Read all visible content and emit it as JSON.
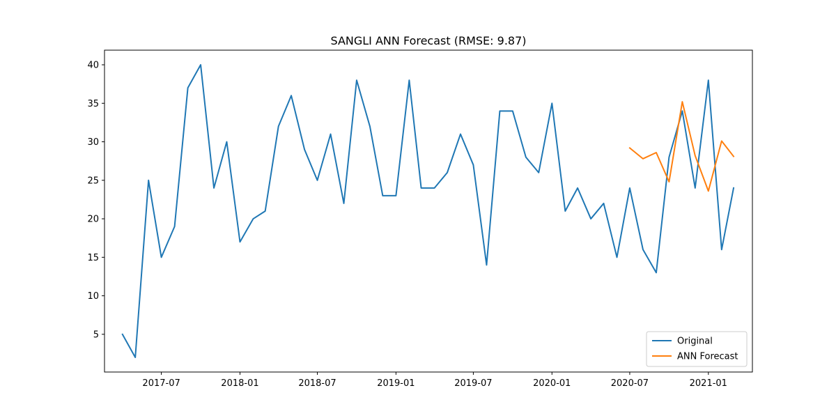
{
  "chart_data": {
    "type": "line",
    "title": "SANGLI ANN Forecast (RMSE: 9.87)",
    "xlabel": "",
    "ylabel": "",
    "x_axis_type": "date",
    "xlim": [
      "2017-02-18",
      "2021-04-14"
    ],
    "ylim": [
      0.1,
      41.9
    ],
    "x_ticks": [
      "2017-07",
      "2018-01",
      "2018-07",
      "2019-01",
      "2019-07",
      "2020-01",
      "2020-07",
      "2021-01"
    ],
    "y_ticks": [
      5,
      10,
      15,
      20,
      25,
      30,
      35,
      40
    ],
    "grid": false,
    "legend_position": "lower-right",
    "series": [
      {
        "name": "Original",
        "color": "#1f77b4",
        "x": [
          "2017-04-01",
          "2017-05-01",
          "2017-06-01",
          "2017-07-01",
          "2017-08-01",
          "2017-09-01",
          "2017-10-01",
          "2017-11-01",
          "2017-12-01",
          "2018-01-01",
          "2018-02-01",
          "2018-03-01",
          "2018-04-01",
          "2018-05-01",
          "2018-06-01",
          "2018-07-01",
          "2018-08-01",
          "2018-09-01",
          "2018-10-01",
          "2018-11-01",
          "2018-12-01",
          "2019-01-01",
          "2019-02-01",
          "2019-03-01",
          "2019-04-01",
          "2019-05-01",
          "2019-06-01",
          "2019-07-01",
          "2019-08-01",
          "2019-09-01",
          "2019-10-01",
          "2019-11-01",
          "2019-12-01",
          "2020-01-01",
          "2020-02-01",
          "2020-03-01",
          "2020-04-01",
          "2020-05-01",
          "2020-06-01",
          "2020-07-01",
          "2020-08-01",
          "2020-09-01",
          "2020-10-01",
          "2020-11-01",
          "2020-12-01",
          "2021-01-01",
          "2021-02-01",
          "2021-03-01"
        ],
        "values": [
          5,
          2,
          25,
          15,
          19,
          37,
          40,
          24,
          30,
          17,
          20,
          21,
          32,
          36,
          29,
          25,
          31,
          22,
          38,
          32,
          23,
          23,
          38,
          24,
          24,
          26,
          31,
          27,
          14,
          34,
          34,
          28,
          26,
          35,
          21,
          24,
          20,
          22,
          15,
          24,
          16,
          13,
          28,
          34,
          24,
          38,
          16,
          24
        ]
      },
      {
        "name": "ANN Forecast",
        "color": "#ff7f0e",
        "x": [
          "2020-07-01",
          "2020-08-01",
          "2020-09-01",
          "2020-10-01",
          "2020-11-01",
          "2020-12-01",
          "2021-01-01",
          "2021-02-01",
          "2021-03-01"
        ],
        "values": [
          29.2,
          27.8,
          28.6,
          24.8,
          35.2,
          28.2,
          23.6,
          30.1,
          28.1
        ]
      }
    ]
  }
}
